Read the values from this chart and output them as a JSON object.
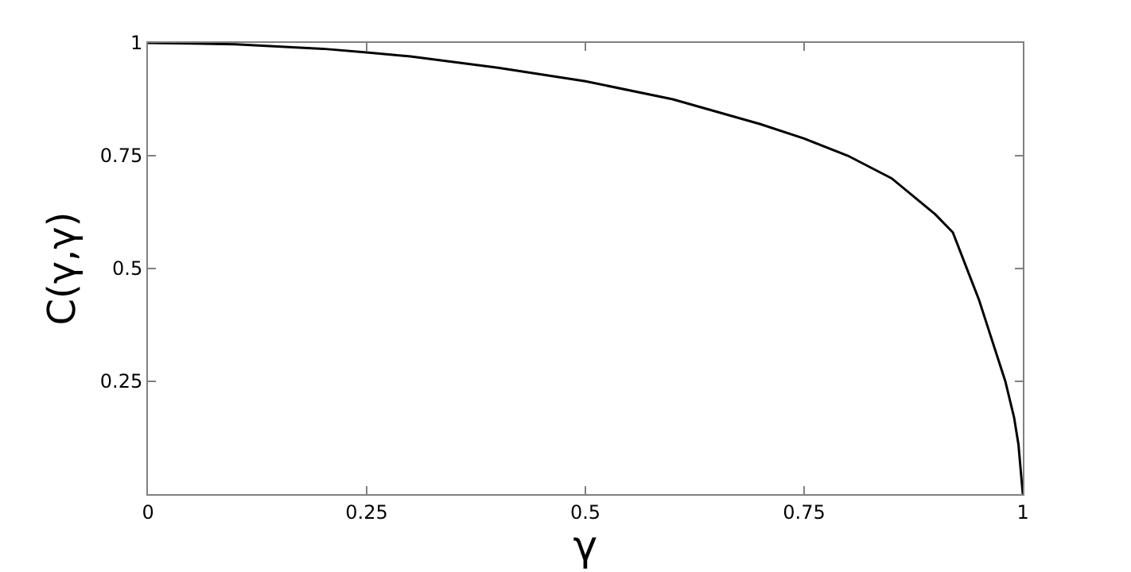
{
  "chart_data": {
    "type": "line",
    "xlabel": "γ",
    "ylabel": "C(γ,γ)",
    "x": [
      0,
      0.1,
      0.2,
      0.25,
      0.3,
      0.4,
      0.5,
      0.6,
      0.7,
      0.75,
      0.8,
      0.85,
      0.9,
      0.92,
      0.94,
      0.95,
      0.96,
      0.97,
      0.98,
      0.99,
      0.995,
      1
    ],
    "series": [
      {
        "color": "#000000",
        "values": [
          1,
          0.997,
          0.987,
          0.979,
          0.97,
          0.945,
          0.915,
          0.875,
          0.82,
          0.788,
          0.75,
          0.7,
          0.62,
          0.58,
          0.48,
          0.43,
          0.37,
          0.31,
          0.25,
          0.17,
          0.11,
          0
        ]
      }
    ],
    "xlim": [
      0,
      1
    ],
    "xticks": [
      0,
      0.25,
      0.5,
      0.75,
      1
    ],
    "ylim": [
      0,
      1
    ],
    "yticks": [
      0.25,
      0.5,
      0.75,
      1
    ],
    "marker": "none",
    "line_style": "solid"
  }
}
